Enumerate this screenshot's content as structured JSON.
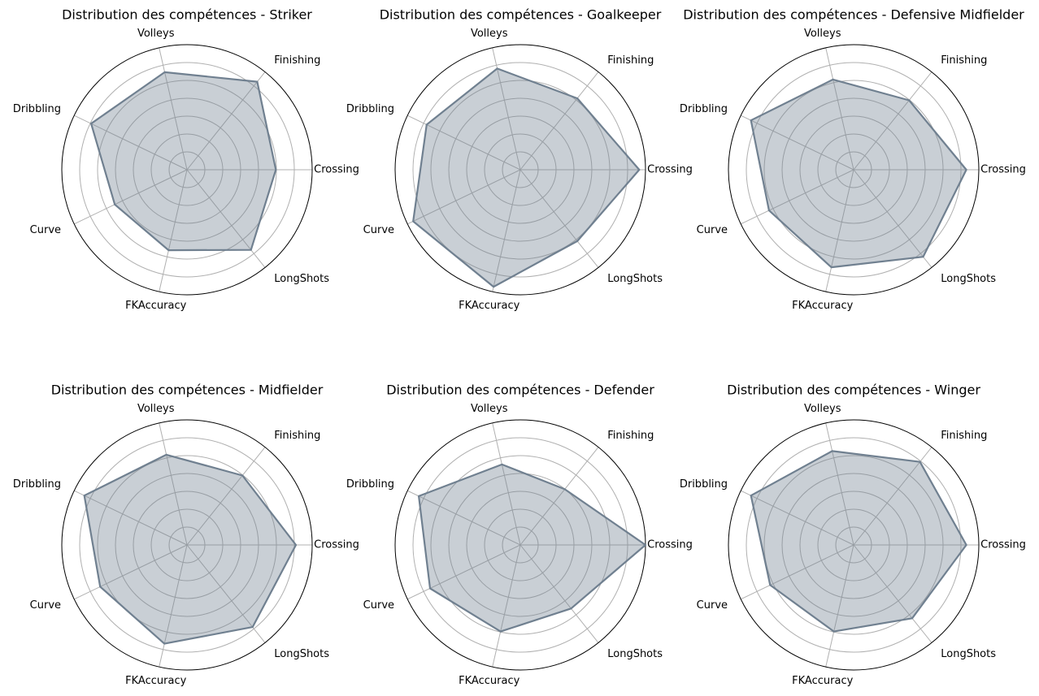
{
  "figure": {
    "colors": {
      "series_line": "#708090",
      "series_fill": "#708090",
      "grid": "#b0b0b0",
      "frame": "#000000"
    }
  },
  "chart_data": [
    {
      "type": "radar",
      "title": "Distribution des compétences - Striker",
      "axes": [
        "Crossing",
        "Finishing",
        "Volleys",
        "Dribbling",
        "Curve",
        "FKAccuracy",
        "LongShots"
      ],
      "rlim": [
        0,
        100
      ],
      "grid": true,
      "values": [
        71,
        90,
        80,
        85,
        64,
        66,
        82
      ]
    },
    {
      "type": "radar",
      "title": "Distribution des compétences - Goalkeeper",
      "axes": [
        "Crossing",
        "Finishing",
        "Volleys",
        "Dribbling",
        "Curve",
        "FKAccuracy",
        "LongShots"
      ],
      "rlim": [
        0,
        100
      ],
      "grid": true,
      "values": [
        95,
        73,
        83,
        83,
        95,
        96,
        73
      ]
    },
    {
      "type": "radar",
      "title": "Distribution des compétences - Defensive Midfielder",
      "axes": [
        "Crossing",
        "Finishing",
        "Volleys",
        "Dribbling",
        "Curve",
        "FKAccuracy",
        "LongShots"
      ],
      "rlim": [
        0,
        100
      ],
      "grid": true,
      "values": [
        90,
        71,
        74,
        91,
        75,
        80,
        89
      ]
    },
    {
      "type": "radar",
      "title": "Distribution des compétences - Midfielder",
      "axes": [
        "Crossing",
        "Finishing",
        "Volleys",
        "Dribbling",
        "Curve",
        "FKAccuracy",
        "LongShots"
      ],
      "rlim": [
        0,
        100
      ],
      "grid": true,
      "values": [
        87,
        71,
        74,
        91,
        77,
        81,
        84
      ]
    },
    {
      "type": "radar",
      "title": "Distribution des compétences - Defender",
      "axes": [
        "Crossing",
        "Finishing",
        "Volleys",
        "Dribbling",
        "Curve",
        "FKAccuracy",
        "LongShots"
      ],
      "rlim": [
        0,
        100
      ],
      "grid": true,
      "values": [
        100,
        57,
        66,
        90,
        80,
        71,
        65
      ]
    },
    {
      "type": "radar",
      "title": "Distribution des compétences - Winger",
      "axes": [
        "Crossing",
        "Finishing",
        "Volleys",
        "Dribbling",
        "Curve",
        "FKAccuracy",
        "LongShots"
      ],
      "rlim": [
        0,
        100
      ],
      "grid": true,
      "values": [
        90,
        85,
        77,
        91,
        74,
        71,
        75
      ]
    }
  ]
}
